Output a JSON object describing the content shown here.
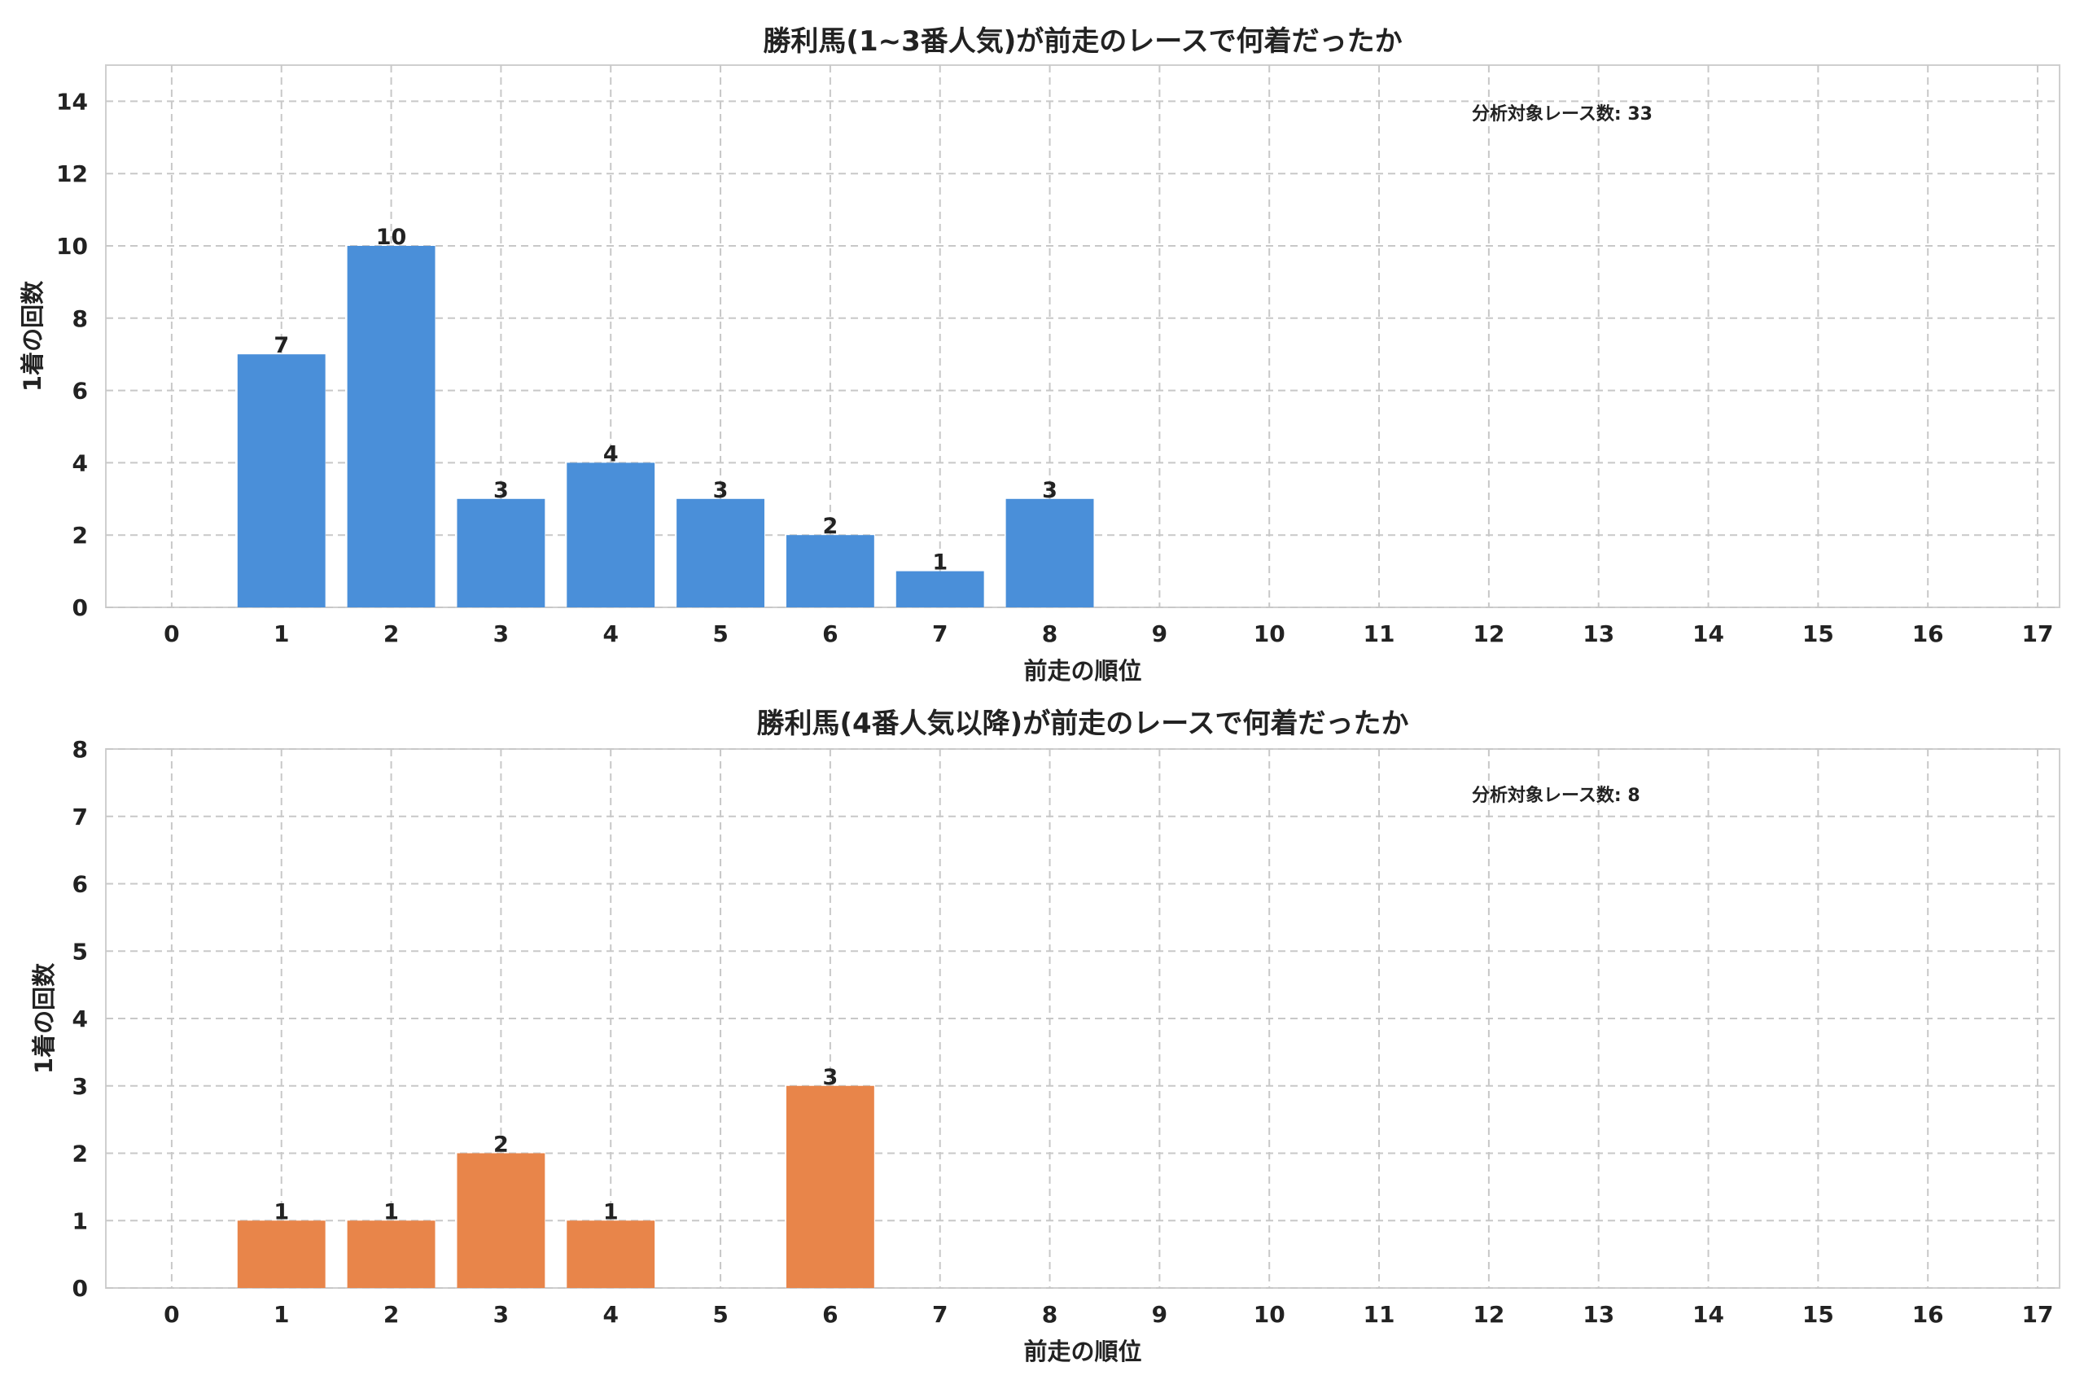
{
  "chart_data": [
    {
      "type": "bar",
      "title": "勝利馬(1~3番人気)が前走のレースで何着だったか",
      "xlabel": "前走の順位",
      "ylabel": "1着の回数",
      "x": [
        1,
        2,
        3,
        4,
        5,
        6,
        7,
        8
      ],
      "values": [
        7,
        10,
        3,
        4,
        3,
        2,
        1,
        3
      ],
      "data_labels": [
        "7",
        "10",
        "3",
        "4",
        "3",
        "2",
        "1",
        "3"
      ],
      "xticks": [
        "0",
        "1",
        "2",
        "3",
        "4",
        "5",
        "6",
        "7",
        "8",
        "9",
        "10",
        "11",
        "12",
        "13",
        "14",
        "15",
        "16",
        "17"
      ],
      "yticks": [
        "0",
        "2",
        "4",
        "6",
        "8",
        "10",
        "12",
        "14"
      ],
      "xlim": [
        -0.6,
        17.2
      ],
      "ylim": [
        0,
        15
      ],
      "color": "#4a8fd9",
      "grid": true,
      "annotation": "分析対象レース数: 33"
    },
    {
      "type": "bar",
      "title": "勝利馬(4番人気以降)が前走のレースで何着だったか",
      "xlabel": "前走の順位",
      "ylabel": "1着の回数",
      "x": [
        1,
        2,
        3,
        4,
        6
      ],
      "values": [
        1,
        1,
        2,
        1,
        3
      ],
      "data_labels": [
        "1",
        "1",
        "2",
        "1",
        "3"
      ],
      "xticks": [
        "0",
        "1",
        "2",
        "3",
        "4",
        "5",
        "6",
        "7",
        "8",
        "9",
        "10",
        "11",
        "12",
        "13",
        "14",
        "15",
        "16",
        "17"
      ],
      "yticks": [
        "0",
        "1",
        "2",
        "3",
        "4",
        "5",
        "6",
        "7",
        "8"
      ],
      "xlim": [
        -0.6,
        17.2
      ],
      "ylim": [
        0,
        8
      ],
      "color": "#e8854a",
      "grid": true,
      "annotation": "分析対象レース数: 8"
    }
  ]
}
